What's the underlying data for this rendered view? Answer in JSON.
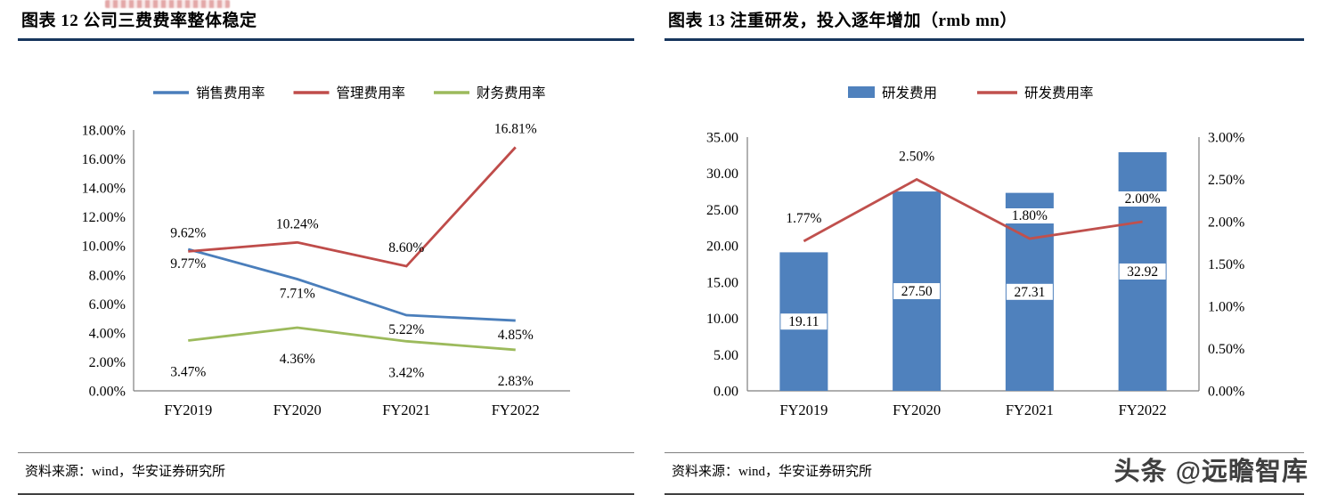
{
  "page": {
    "watermark": "头条 @远瞻智库"
  },
  "chart_data": [
    {
      "type": "line",
      "title": "图表 12  公司三费费率整体稳定",
      "categories": [
        "FY2019",
        "FY2020",
        "FY2021",
        "FY2022"
      ],
      "series": [
        {
          "name": "销售费用率",
          "color": "#4a7ebb",
          "values": [
            9.77,
            7.71,
            5.22,
            4.85
          ],
          "label_pos": "below",
          "label_dy": 21
        },
        {
          "name": "管理费用率",
          "color": "#bf4c4a",
          "values": [
            9.62,
            10.24,
            8.6,
            16.81
          ],
          "label_pos": "above",
          "label_dy": -16
        },
        {
          "name": "财务费用率",
          "color": "#9cba5c",
          "values": [
            3.47,
            4.36,
            3.42,
            2.83
          ],
          "label_pos": "below",
          "label_dy": 40
        }
      ],
      "ylim": [
        0,
        18
      ],
      "ytick_step": 2,
      "ytick_format": "percent2",
      "grid": false,
      "legend_position": "top",
      "source": "资料来源：wind，华安证券研究所"
    },
    {
      "type": "bar+line",
      "title": "图表 13  注重研发，投入逐年增加（rmb mn）",
      "categories": [
        "FY2019",
        "FY2020",
        "FY2021",
        "FY2022"
      ],
      "bar_series": {
        "name": "研发费用",
        "color": "#4f81bd",
        "values": [
          19.11,
          27.5,
          27.31,
          32.92
        ],
        "axis": "left"
      },
      "line_series": {
        "name": "研发费用率",
        "color": "#c0504d",
        "values": [
          1.77,
          2.5,
          1.8,
          2
        ],
        "axis": "right",
        "label_dy": -21
      },
      "ylim_left": [
        0,
        35
      ],
      "ytick_step_left": 5,
      "ytick_format_left": "num2",
      "ylim_right": [
        0,
        3
      ],
      "ytick_step_right": 0.5,
      "ytick_format_right": "percent2",
      "grid": false,
      "legend_position": "top",
      "source": "资料来源：wind，华安证券研究所"
    }
  ]
}
